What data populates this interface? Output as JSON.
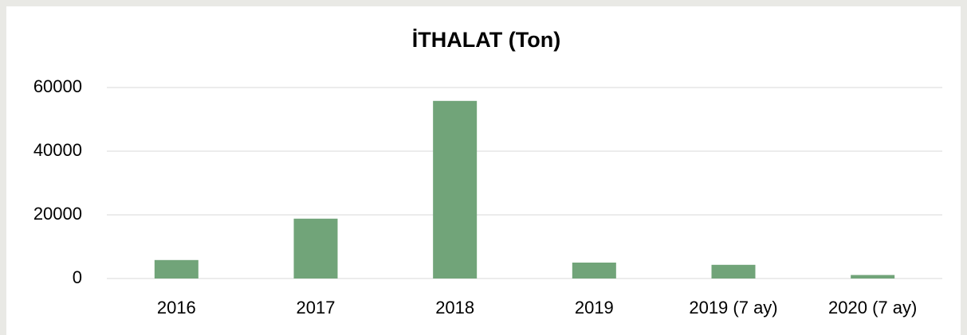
{
  "chart_data": {
    "type": "bar",
    "title": "İTHALAT (Ton)",
    "categories": [
      "2016",
      "2017",
      "2018",
      "2019",
      "2019 (7 ay)",
      "2020 (7 ay)"
    ],
    "values": [
      5800,
      18800,
      55800,
      5000,
      4300,
      1100
    ],
    "color": "#71a479",
    "ylim": [
      0,
      60000
    ],
    "yticks": [
      0,
      20000,
      40000,
      60000
    ],
    "grid": true
  }
}
